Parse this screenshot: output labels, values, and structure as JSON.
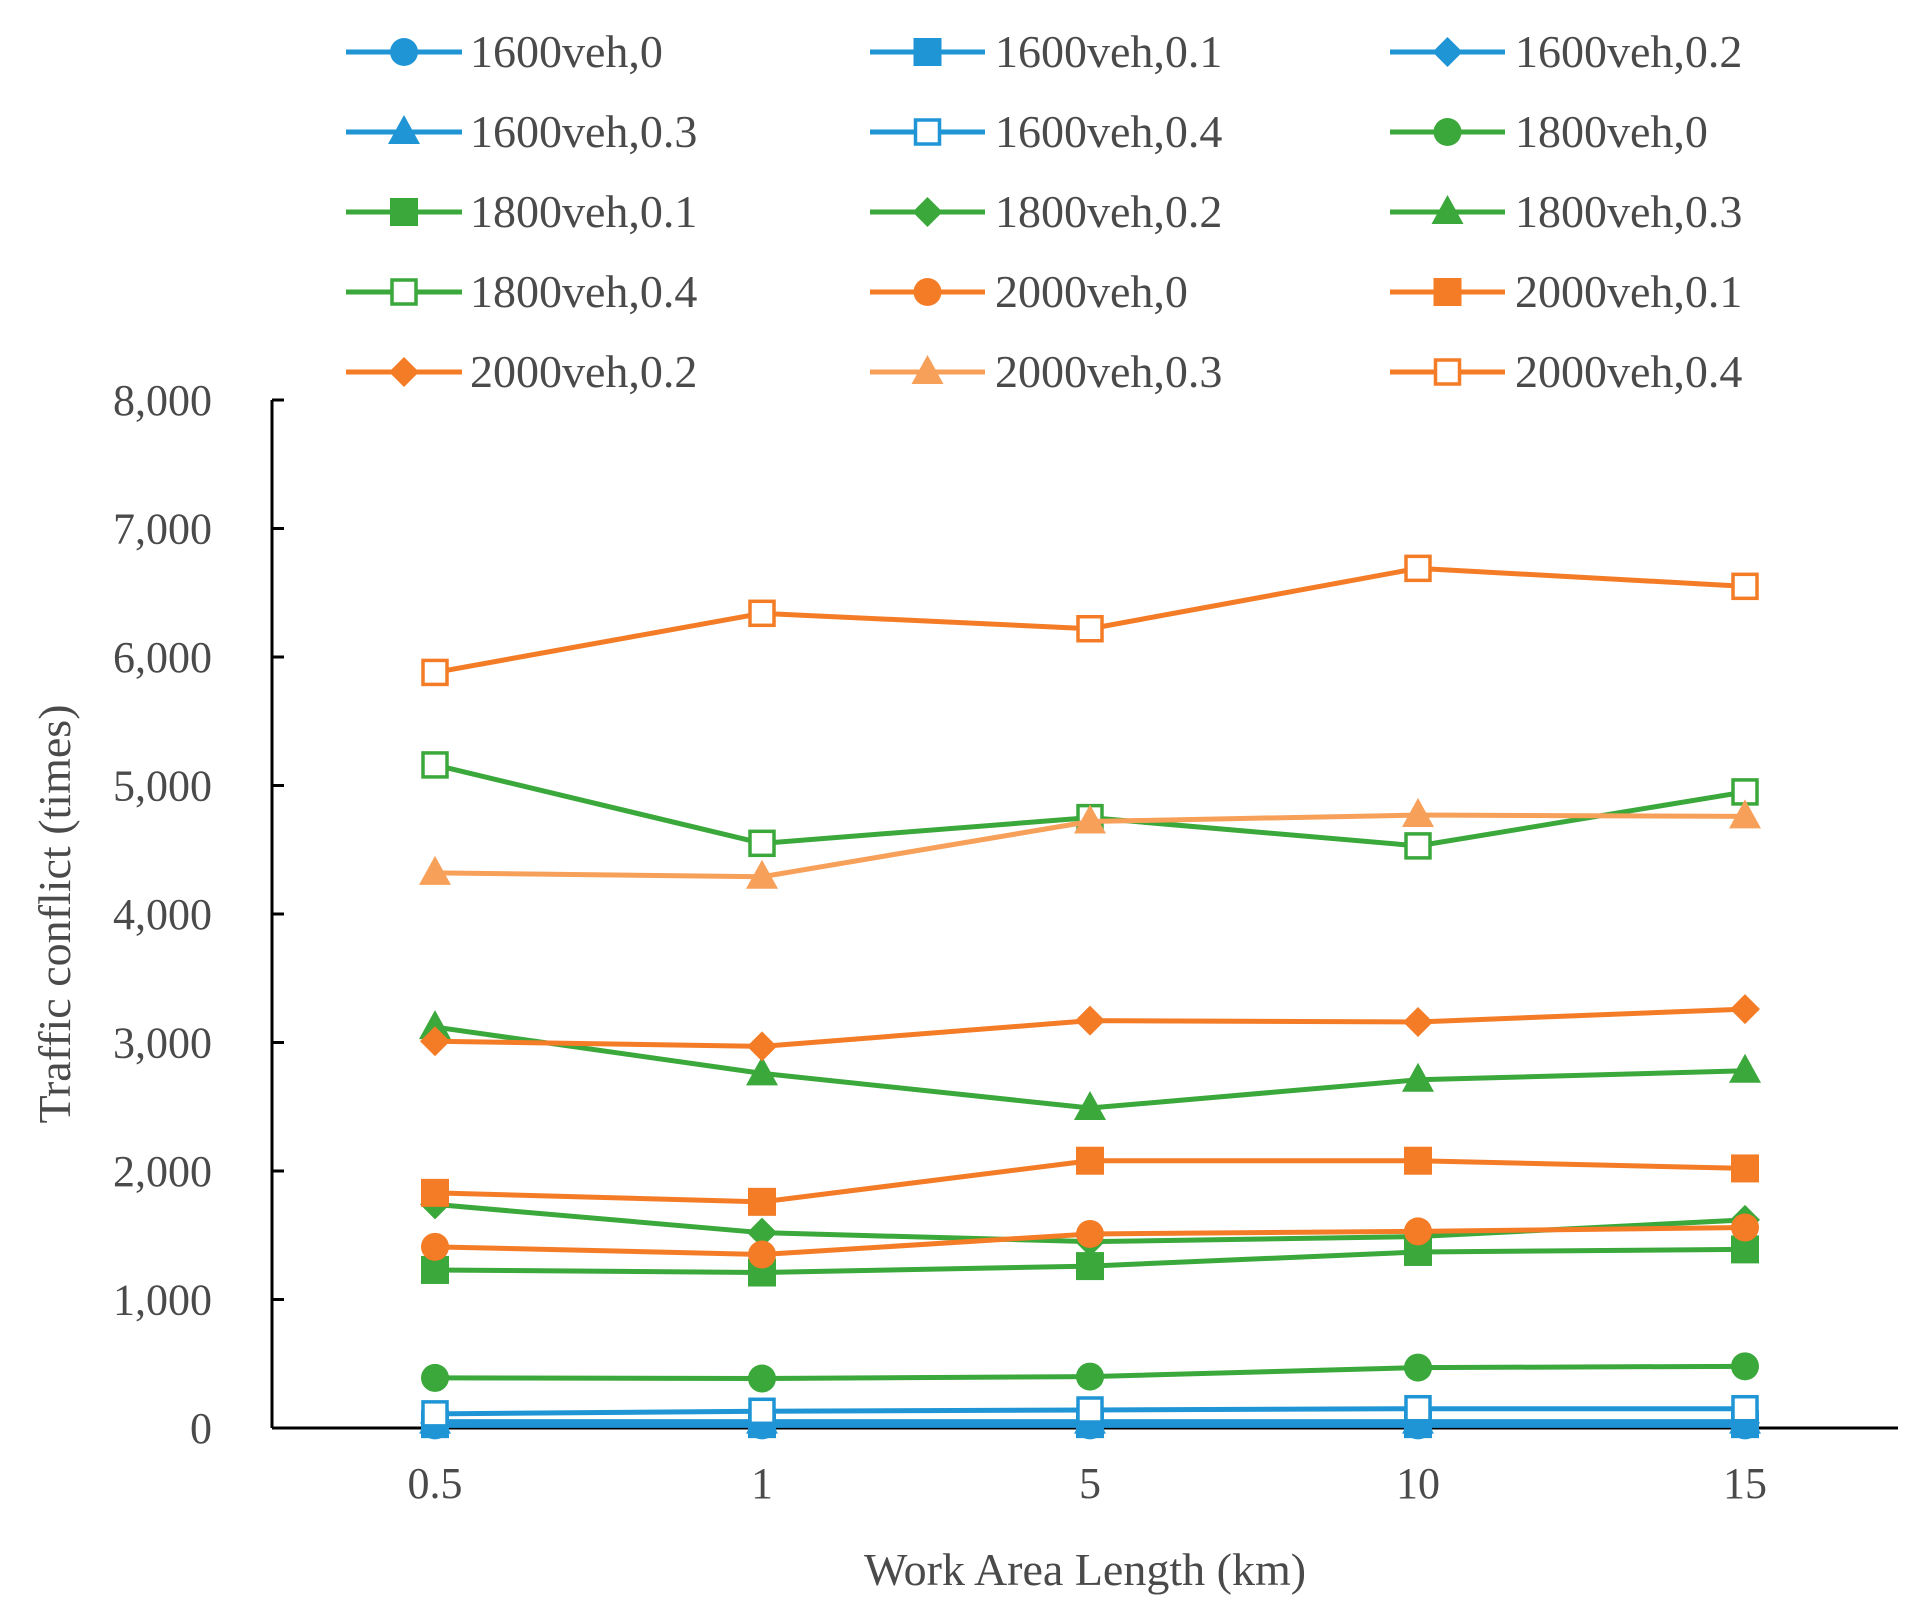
{
  "chart_data": {
    "type": "line",
    "title": "",
    "xlabel": "Work Area Length (km)",
    "ylabel": "Traffic conflict (times)",
    "categories": [
      "0.5",
      "1",
      "5",
      "10",
      "15"
    ],
    "ylim": [
      0,
      8000
    ],
    "yticks": [
      "0",
      "1,000",
      "2,000",
      "3,000",
      "4,000",
      "5,000",
      "6,000",
      "7,000",
      "8,000"
    ],
    "grid": false,
    "legend": "top",
    "series": [
      {
        "name": "1600veh,0",
        "color": "#1f95d6",
        "marker": "circle",
        "values": [
          20,
          20,
          20,
          20,
          20
        ]
      },
      {
        "name": "1600veh,0.1",
        "color": "#1f95d6",
        "marker": "square",
        "values": [
          30,
          30,
          30,
          30,
          30
        ]
      },
      {
        "name": "1600veh,0.2",
        "color": "#1f95d6",
        "marker": "diamond",
        "values": [
          40,
          40,
          40,
          40,
          40
        ]
      },
      {
        "name": "1600veh,0.3",
        "color": "#1f95d6",
        "marker": "triangle",
        "values": [
          50,
          50,
          50,
          50,
          50
        ]
      },
      {
        "name": "1600veh,0.4",
        "color": "#1f95d6",
        "marker": "square-open",
        "values": [
          110,
          130,
          140,
          150,
          150
        ]
      },
      {
        "name": "1800veh,0",
        "color": "#3aa83a",
        "marker": "circle",
        "values": [
          390,
          385,
          400,
          470,
          480
        ]
      },
      {
        "name": "1800veh,0.1",
        "color": "#3aa83a",
        "marker": "square",
        "values": [
          1230,
          1210,
          1260,
          1370,
          1390
        ]
      },
      {
        "name": "1800veh,0.2",
        "color": "#3aa83a",
        "marker": "diamond",
        "values": [
          1740,
          1520,
          1450,
          1490,
          1620
        ]
      },
      {
        "name": "1800veh,0.3",
        "color": "#3aa83a",
        "marker": "triangle",
        "values": [
          3120,
          2760,
          2490,
          2710,
          2780
        ]
      },
      {
        "name": "1800veh,0.4",
        "color": "#3aa83a",
        "marker": "square-open",
        "values": [
          5160,
          4550,
          4750,
          4530,
          4950
        ]
      },
      {
        "name": "2000veh,0",
        "color": "#f47c26",
        "marker": "circle",
        "values": [
          1410,
          1350,
          1510,
          1530,
          1560
        ]
      },
      {
        "name": "2000veh,0.1",
        "color": "#f47c26",
        "marker": "square",
        "values": [
          1830,
          1760,
          2080,
          2080,
          2020
        ]
      },
      {
        "name": "2000veh,0.2",
        "color": "#f47c26",
        "marker": "diamond",
        "values": [
          3010,
          2970,
          3170,
          3160,
          3260
        ]
      },
      {
        "name": "2000veh,0.3",
        "color": "#f7a05a",
        "marker": "triangle",
        "values": [
          4320,
          4290,
          4720,
          4770,
          4760
        ]
      },
      {
        "name": "2000veh,0.4",
        "color": "#f47c26",
        "marker": "square-open",
        "values": [
          5880,
          6340,
          6220,
          6690,
          6550
        ]
      }
    ]
  }
}
